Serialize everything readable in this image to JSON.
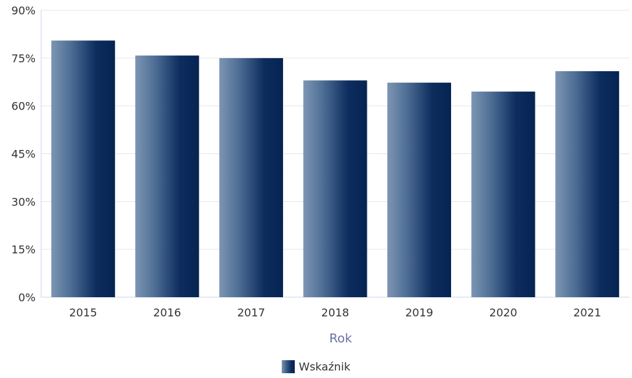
{
  "chart_data": {
    "type": "bar",
    "categories": [
      "2015",
      "2016",
      "2017",
      "2018",
      "2019",
      "2020",
      "2021"
    ],
    "series": [
      {
        "name": "Wskaźnik",
        "values": [
          80.5,
          75.8,
          75.0,
          68.0,
          67.3,
          64.5,
          70.9
        ]
      }
    ],
    "xlabel": "Rok",
    "ylabel": "",
    "ylim": [
      0,
      90
    ],
    "yticks": [
      "0%",
      "15%",
      "30%",
      "45%",
      "60%",
      "75%",
      "90%"
    ],
    "ytick_values": [
      0,
      15,
      30,
      45,
      60,
      75,
      90
    ],
    "grid": true,
    "legend_position": "bottom-center",
    "colors": {
      "bar_light": "#7d95b3",
      "bar_mid": "#3d5f88",
      "bar_dark": "#062351",
      "grid": "#e6e6e6",
      "axis_title": "#6a70a8",
      "text": "#333333"
    }
  },
  "legend": {
    "items": [
      {
        "label": "Wskaźnik",
        "icon": "bar-gradient-swatch"
      }
    ]
  }
}
